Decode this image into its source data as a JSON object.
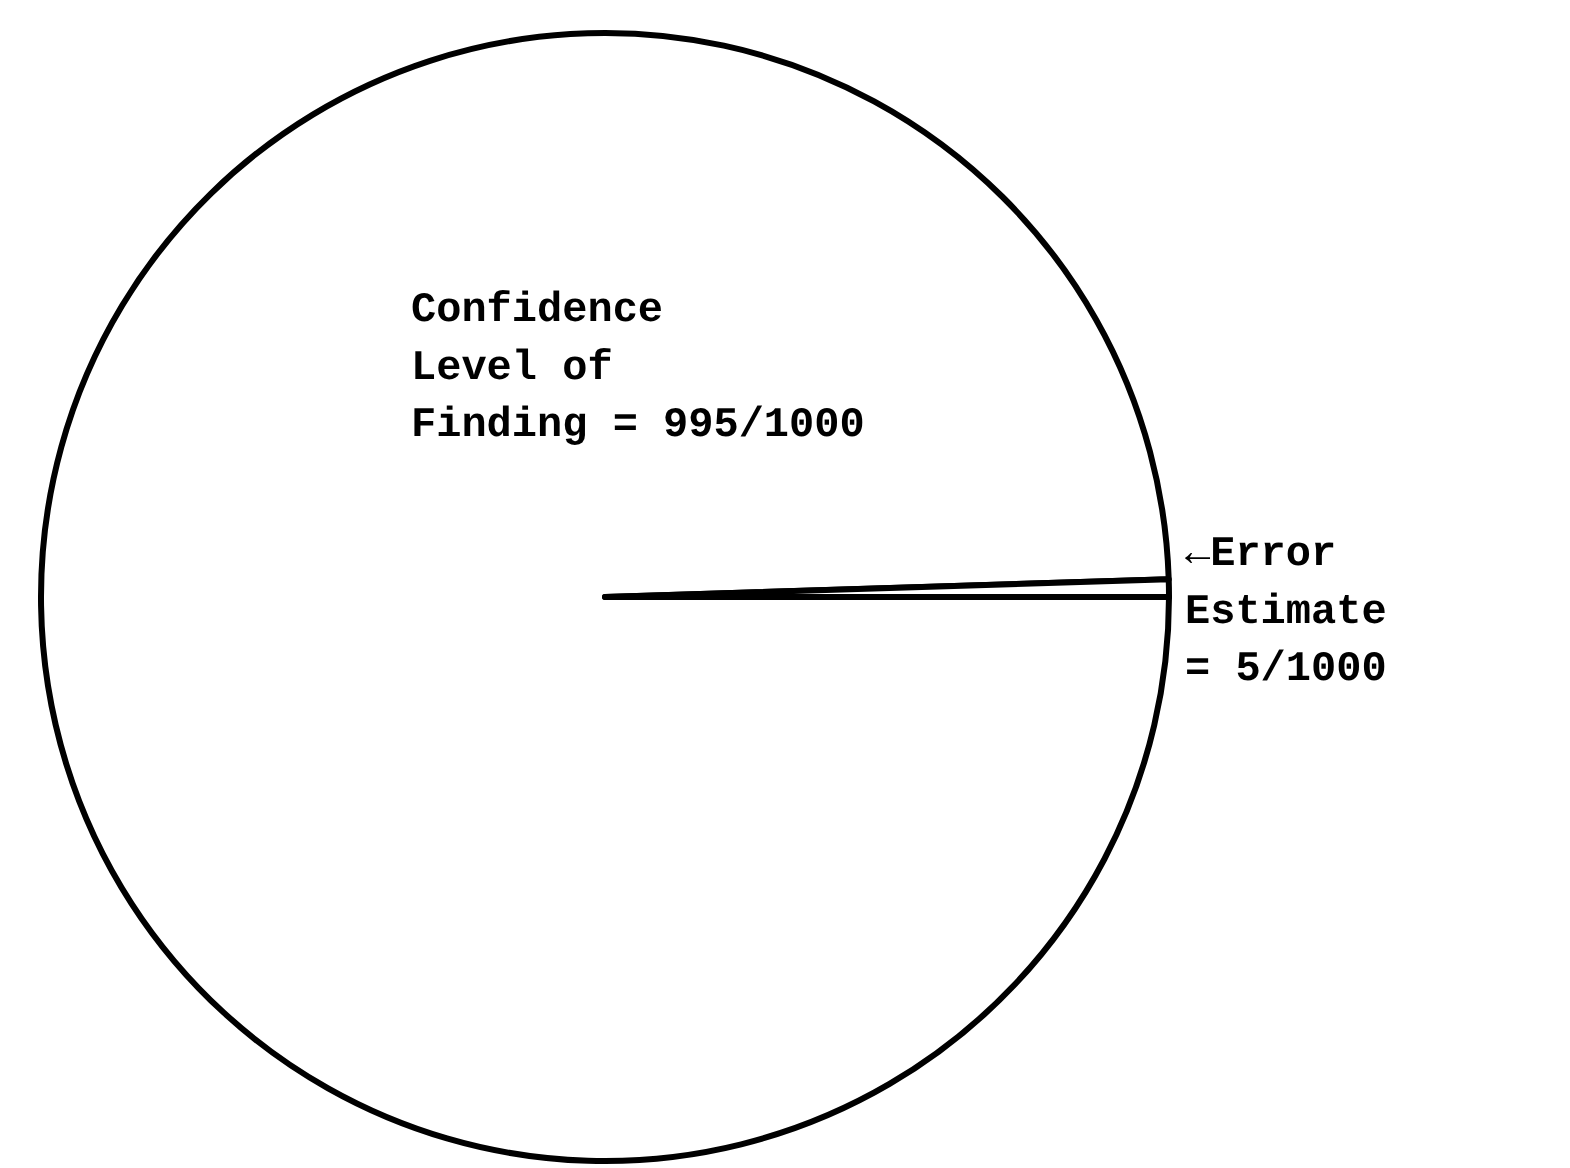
{
  "chart_data": {
    "type": "pie",
    "categories": [
      "Confidence\nLevel of\nFinding",
      "←Error\n Estimate"
    ],
    "values": [
      995,
      5
    ],
    "value_labels": [
      "= 995/1000",
      " = 5/1000"
    ],
    "colors": [
      "#ffffff",
      "#ffffff"
    ]
  }
}
